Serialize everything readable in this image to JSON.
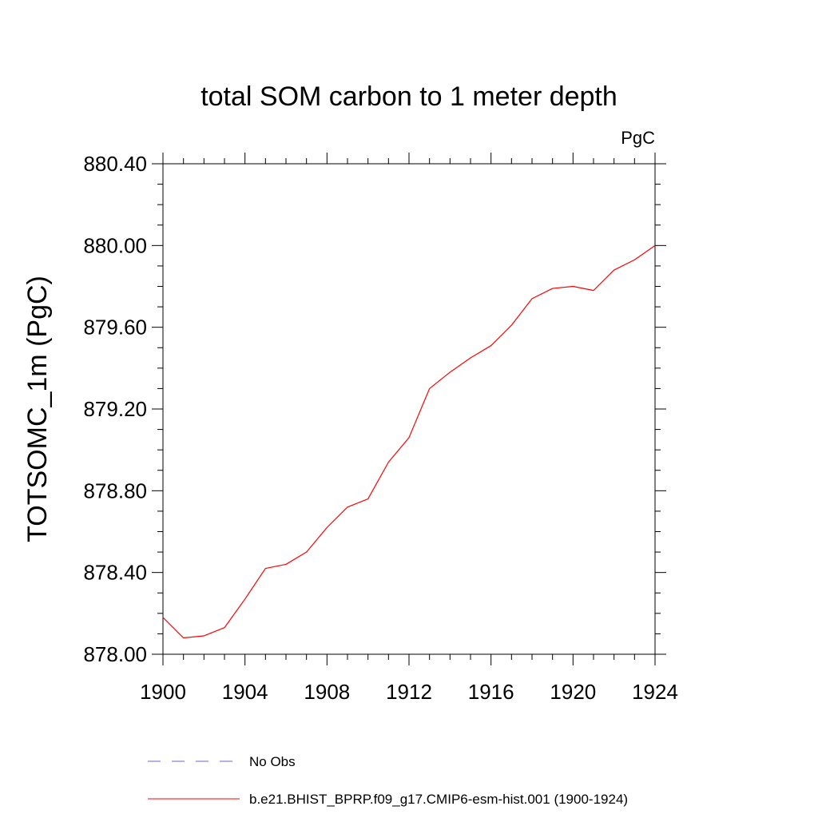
{
  "chart_data": {
    "type": "line",
    "title": "total SOM carbon to 1 meter depth",
    "units_label": "PgC",
    "xlabel": "",
    "ylabel": "TOTSOMC_1m  (PgC)",
    "xlim": [
      1900,
      1924
    ],
    "ylim": [
      878.0,
      880.4
    ],
    "xticks": [
      1900,
      1904,
      1908,
      1912,
      1916,
      1920,
      1924
    ],
    "xtick_labels": [
      "1900",
      "1904",
      "1908",
      "1912",
      "1916",
      "1920",
      "1924"
    ],
    "yticks": [
      878.0,
      878.4,
      878.8,
      879.2,
      879.6,
      880.0,
      880.4
    ],
    "ytick_labels": [
      "878.00",
      "878.40",
      "878.80",
      "879.20",
      "879.60",
      "880.00",
      "880.40"
    ],
    "x": [
      1900,
      1901,
      1902,
      1903,
      1904,
      1905,
      1906,
      1907,
      1908,
      1909,
      1910,
      1911,
      1912,
      1913,
      1914,
      1915,
      1916,
      1917,
      1918,
      1919,
      1920,
      1921,
      1922,
      1923,
      1924
    ],
    "series": [
      {
        "name": "b.e21.BHIST_BPRP.f09_g17.CMIP6-esm-hist.001 (1900-1924)",
        "color": "#ff0000",
        "dash": "solid",
        "values": [
          878.18,
          878.08,
          878.09,
          878.13,
          878.27,
          878.42,
          878.44,
          878.5,
          878.62,
          878.72,
          878.76,
          878.94,
          879.06,
          879.3,
          879.38,
          879.45,
          879.51,
          879.61,
          879.74,
          879.79,
          879.8,
          879.78,
          879.88,
          879.93,
          880.0
        ]
      }
    ],
    "legend": {
      "placement": "bottom",
      "entries": [
        {
          "label": "No Obs",
          "color": "#6b5fd6",
          "dash": "dashed"
        },
        {
          "label": "b.e21.BHIST_BPRP.f09_g17.CMIP6-esm-hist.001 (1900-1924)",
          "color": "#ff0000",
          "dash": "solid"
        }
      ]
    }
  }
}
